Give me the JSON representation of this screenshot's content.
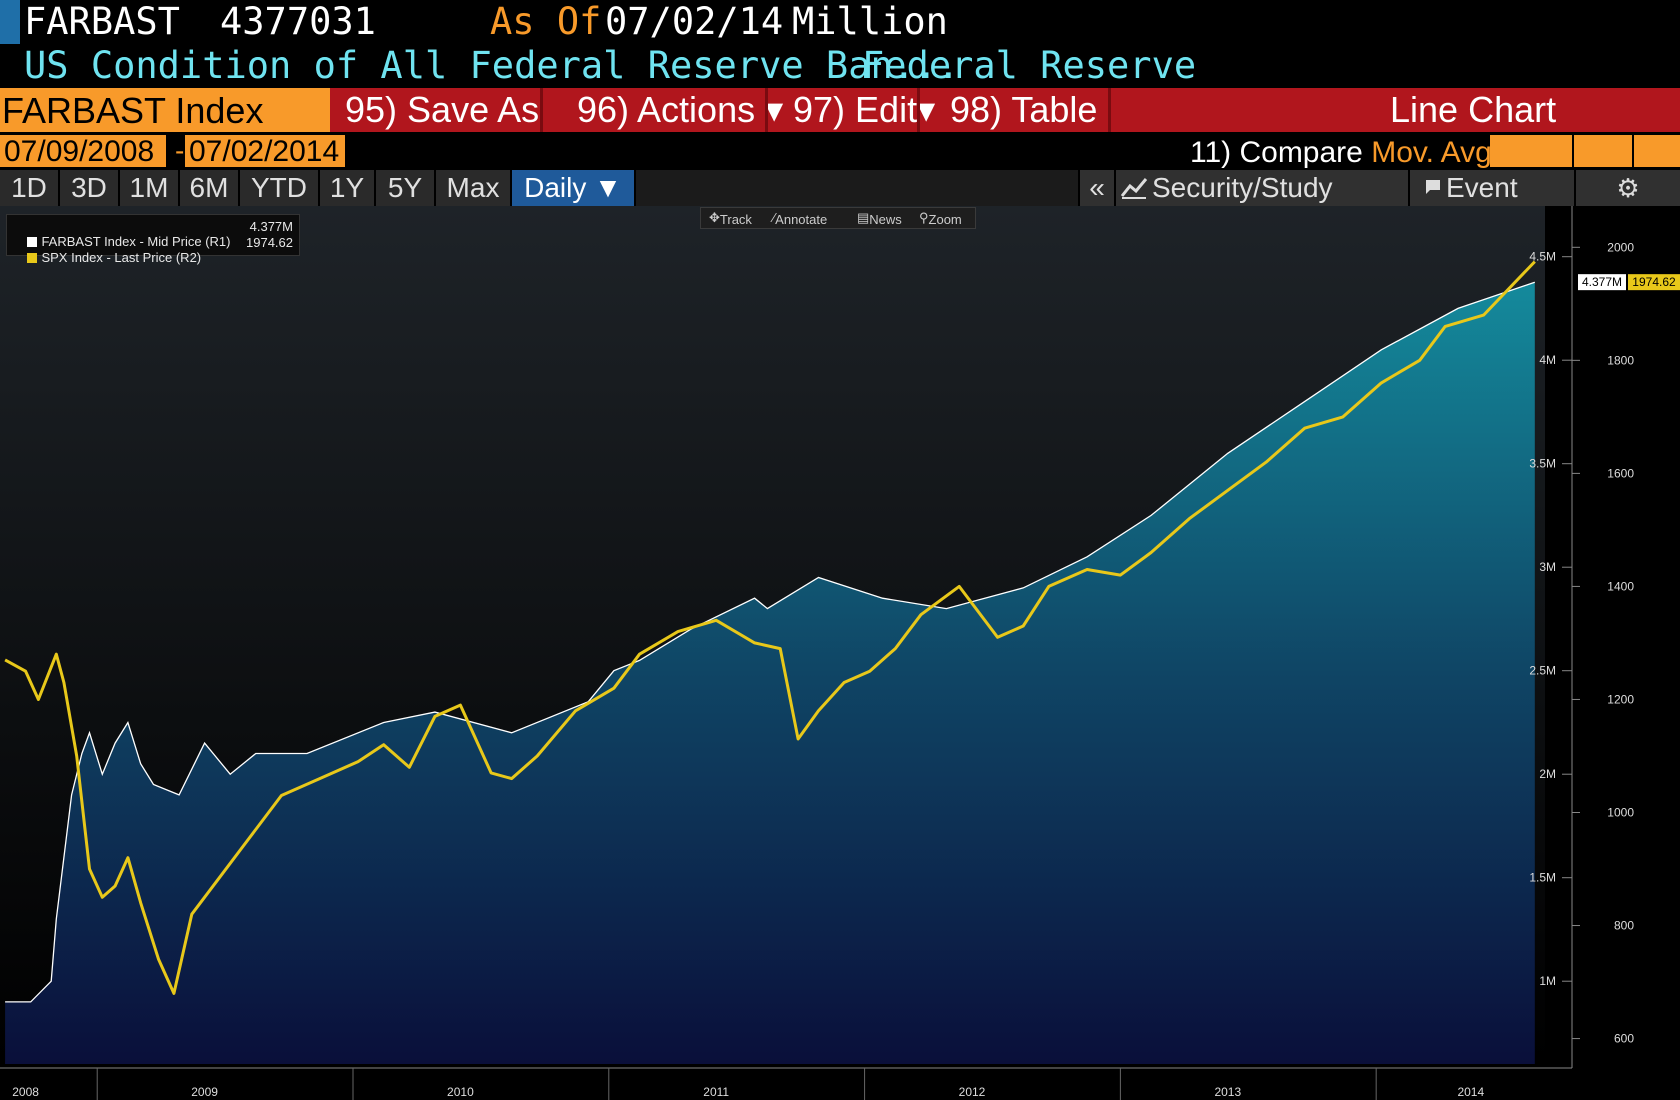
{
  "header": {
    "ticker": "FARBAST",
    "value": "4377031",
    "as_of_label": "As Of",
    "as_of_date": "07/02/14",
    "units": "Million",
    "description": "US Condition of All Federal Reserve Ban...",
    "source": "Federal Reserve"
  },
  "function_bar": {
    "index_label": "FARBAST Index",
    "save_as": "95) Save As",
    "actions": "96) Actions ▾",
    "edit": "97) Edit▾",
    "table": "98) Table",
    "view_name": "Line Chart"
  },
  "date_range": {
    "start": "07/09/2008",
    "dash": "-",
    "end": "07/02/2014",
    "compare_label": "11) Compare",
    "mov_avgs_label": "Mov. Avgs"
  },
  "toolbar": {
    "timeframes": [
      "1D",
      "3D",
      "1M",
      "6M",
      "YTD",
      "1Y",
      "5Y",
      "Max"
    ],
    "frequency": "Daily ▼",
    "collapse": "«",
    "security_study": "Security/Study",
    "event": "Event",
    "settings_icon": "gear-icon"
  },
  "chart_tools": {
    "track": "Track",
    "annotate": "Annotate",
    "news": "News",
    "zoom": "Zoom"
  },
  "legend": {
    "series1_label": "FARBAST Index - Mid Price (R1)",
    "series1_value": "4.377M",
    "series2_label": "SPX Index - Last Price (R2)",
    "series2_value": "1974.62"
  },
  "colors": {
    "series1": "#ffffff",
    "series2": "#e8c81a",
    "area_top": "#148a9c",
    "area_bottom": "#0a0f3a",
    "accent_orange": "#f89a2a",
    "function_red": "#b1161d"
  },
  "chart_data": {
    "type": "line",
    "x_axis": {
      "tick_labels": [
        "2008",
        "2009",
        "2010",
        "2011",
        "2012",
        "2013",
        "2014"
      ]
    },
    "axes": {
      "r1": {
        "ticks": [
          "4.5M",
          "4M",
          "3.5M",
          "3M",
          "2.5M",
          "2M",
          "1.5M",
          "1M"
        ],
        "ylim": [
          0.6,
          4.6
        ]
      },
      "r2": {
        "ticks": [
          "2000",
          "1800",
          "1600",
          "1400",
          "1200",
          "1000",
          "800",
          "600"
        ],
        "ylim": [
          555,
          2020
        ]
      }
    },
    "series": [
      {
        "name": "FARBAST Index - Mid Price (R1)",
        "axis": "r1",
        "last_value_label": "4.377M",
        "x": [
          2008.52,
          2008.62,
          2008.7,
          2008.72,
          2008.78,
          2008.82,
          2008.85,
          2008.9,
          2008.95,
          2009.0,
          2009.05,
          2009.1,
          2009.2,
          2009.3,
          2009.4,
          2009.5,
          2009.7,
          2010.0,
          2010.2,
          2010.5,
          2010.8,
          2010.9,
          2011.0,
          2011.2,
          2011.45,
          2011.5,
          2011.7,
          2011.95,
          2012.2,
          2012.5,
          2012.75,
          2013.0,
          2013.3,
          2013.6,
          2013.9,
          2014.2,
          2014.5
        ],
        "values": [
          0.9,
          0.9,
          1.0,
          1.3,
          1.9,
          2.1,
          2.2,
          2.0,
          2.15,
          2.25,
          2.05,
          1.95,
          1.9,
          2.15,
          2.0,
          2.1,
          2.1,
          2.25,
          2.3,
          2.2,
          2.35,
          2.5,
          2.55,
          2.7,
          2.85,
          2.8,
          2.95,
          2.85,
          2.8,
          2.9,
          3.05,
          3.25,
          3.55,
          3.8,
          4.05,
          4.25,
          4.377
        ]
      },
      {
        "name": "SPX Index - Last Price (R2)",
        "axis": "r2",
        "last_value_label": "1974.62",
        "x": [
          2008.52,
          2008.6,
          2008.65,
          2008.72,
          2008.75,
          2008.8,
          2008.85,
          2008.9,
          2008.95,
          2009.0,
          2009.05,
          2009.12,
          2009.18,
          2009.25,
          2009.35,
          2009.45,
          2009.6,
          2009.75,
          2009.9,
          2010.0,
          2010.1,
          2010.2,
          2010.3,
          2010.42,
          2010.5,
          2010.6,
          2010.75,
          2010.9,
          2011.0,
          2011.15,
          2011.3,
          2011.45,
          2011.55,
          2011.62,
          2011.7,
          2011.8,
          2011.9,
          2012.0,
          2012.1,
          2012.25,
          2012.4,
          2012.5,
          2012.6,
          2012.75,
          2012.88,
          2013.0,
          2013.15,
          2013.3,
          2013.45,
          2013.6,
          2013.75,
          2013.9,
          2014.05,
          2014.15,
          2014.3,
          2014.5
        ],
        "values": [
          1270,
          1250,
          1200,
          1280,
          1230,
          1100,
          900,
          850,
          870,
          920,
          840,
          740,
          680,
          820,
          880,
          940,
          1030,
          1060,
          1090,
          1120,
          1080,
          1170,
          1190,
          1070,
          1060,
          1100,
          1180,
          1220,
          1280,
          1320,
          1340,
          1300,
          1290,
          1130,
          1180,
          1230,
          1250,
          1290,
          1350,
          1400,
          1310,
          1330,
          1400,
          1430,
          1420,
          1460,
          1520,
          1570,
          1620,
          1680,
          1700,
          1760,
          1800,
          1860,
          1880,
          1974.62
        ]
      }
    ],
    "legend_placement": "top-left",
    "grid": false
  }
}
